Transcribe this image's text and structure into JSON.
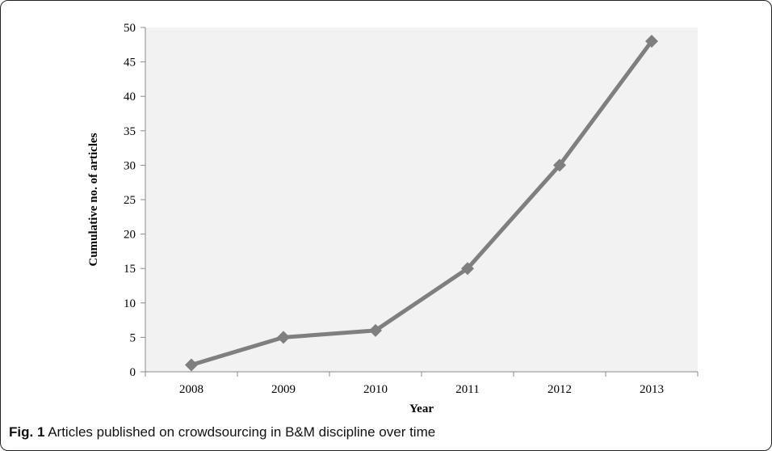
{
  "caption": {
    "label": "Fig. 1",
    "text": "Articles published on crowdsourcing in B&M discipline over time"
  },
  "chart_data": {
    "type": "line",
    "xlabel": "Year",
    "ylabel": "Cumulative no. of articles",
    "categories": [
      "2008",
      "2009",
      "2010",
      "2011",
      "2012",
      "2013"
    ],
    "series": [
      {
        "values": [
          1,
          5,
          6,
          15,
          30,
          48
        ]
      }
    ],
    "ylim": [
      0,
      50
    ],
    "yticks": [
      0,
      5,
      10,
      15,
      20,
      25,
      30,
      35,
      40,
      45,
      50
    ],
    "grid": false,
    "plot_background": "#f2f2f2",
    "line_color": "#7f7f7f",
    "marker": "diamond"
  }
}
